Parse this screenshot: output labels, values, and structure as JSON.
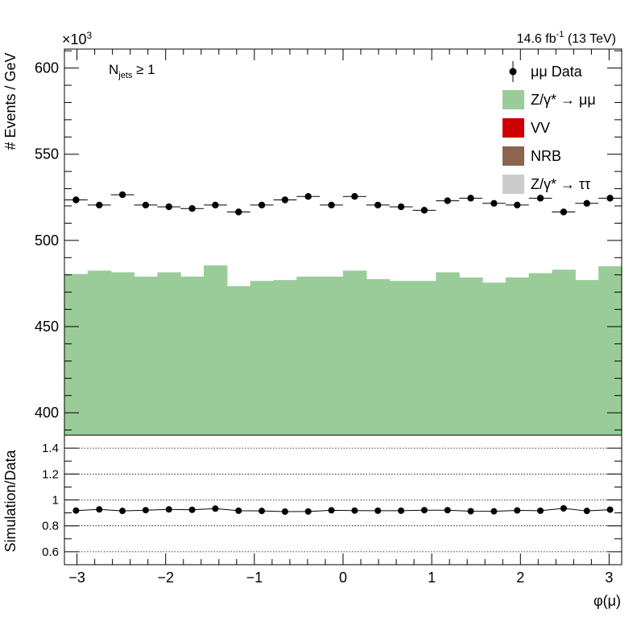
{
  "header": {
    "multiplier": "×10",
    "multiplier_exp": "3",
    "lumi_value": "14.6 fb",
    "lumi_exp": "-1",
    "lumi_energy": " (13 TeV)"
  },
  "selection": {
    "base": "N",
    "sub": "jets",
    "cut": " ≥ 1"
  },
  "legend": [
    {
      "label": "μμ Data",
      "kind": "marker",
      "color": "#000000"
    },
    {
      "label": "Z/γ* → μμ",
      "kind": "box",
      "color": "#99cc99"
    },
    {
      "label": "VV",
      "kind": "box",
      "color": "#cc0000"
    },
    {
      "label": "NRB",
      "kind": "box",
      "color": "#8c6450"
    },
    {
      "label": "Z/γ* → ττ",
      "kind": "box",
      "color": "#cccccc"
    }
  ],
  "chart_data": [
    {
      "type": "bar",
      "panel": "main",
      "xlabel": "",
      "ylabel": "# Events / GeV",
      "xlim": [
        -3.1416,
        3.1416
      ],
      "ylim": [
        387,
        611
      ],
      "yticks": [
        400,
        450,
        500,
        550,
        600
      ],
      "y_multiplier": "×10^3",
      "bin_edges": [
        -3.1416,
        -2.8798,
        -2.618,
        -2.3562,
        -2.0944,
        -1.8326,
        -1.5708,
        -1.309,
        -1.0472,
        -0.7854,
        -0.5236,
        -0.2618,
        0.0,
        0.2618,
        0.5236,
        0.7854,
        1.0472,
        1.309,
        1.5708,
        1.8326,
        2.0944,
        2.3562,
        2.618,
        2.8798,
        3.1416
      ],
      "series": [
        {
          "name": "Z/γ* → μμ",
          "values": [
            480.5,
            482.5,
            481.5,
            479.0,
            481.5,
            479.0,
            485.5,
            473.5,
            476.5,
            477.0,
            479.0,
            479.0,
            482.5,
            477.5,
            476.5,
            476.5,
            481.5,
            478.5,
            475.5,
            478.5,
            481.0,
            483.0,
            477.0,
            485.0
          ],
          "color": "#99cc99"
        },
        {
          "name": "μμ Data",
          "values": [
            523.5,
            520.5,
            526.5,
            520.5,
            519.5,
            518.5,
            520.5,
            516.5,
            520.5,
            523.5,
            525.5,
            520.5,
            525.5,
            520.5,
            519.5,
            517.5,
            523.0,
            524.5,
            521.5,
            520.5,
            524.5,
            516.5,
            521.5,
            524.5
          ],
          "color": "#000000"
        }
      ]
    },
    {
      "type": "scatter",
      "panel": "ratio",
      "xlabel": "φ(μ)",
      "ylabel": "Simulation/Data",
      "xlim": [
        -3.1416,
        3.1416
      ],
      "ylim": [
        0.5,
        1.5
      ],
      "yticks": [
        0.6,
        0.8,
        1.0,
        1.2,
        1.4
      ],
      "ytick_labels": [
        "0.6",
        "0.8",
        "1",
        "1.2",
        "1.4"
      ],
      "xticks": [
        -3,
        -2,
        -1,
        0,
        1,
        2,
        3
      ],
      "xtick_labels": [
        "−3",
        "−2",
        "−1",
        "0",
        "1",
        "2",
        "3"
      ],
      "grid": true,
      "series": [
        {
          "name": "",
          "values": [
            0.918,
            0.927,
            0.915,
            0.921,
            0.927,
            0.924,
            0.933,
            0.917,
            0.915,
            0.91,
            0.911,
            0.92,
            0.918,
            0.917,
            0.917,
            0.921,
            0.921,
            0.913,
            0.912,
            0.919,
            0.917,
            0.935,
            0.915,
            0.925
          ],
          "color": "#000000"
        }
      ]
    }
  ]
}
